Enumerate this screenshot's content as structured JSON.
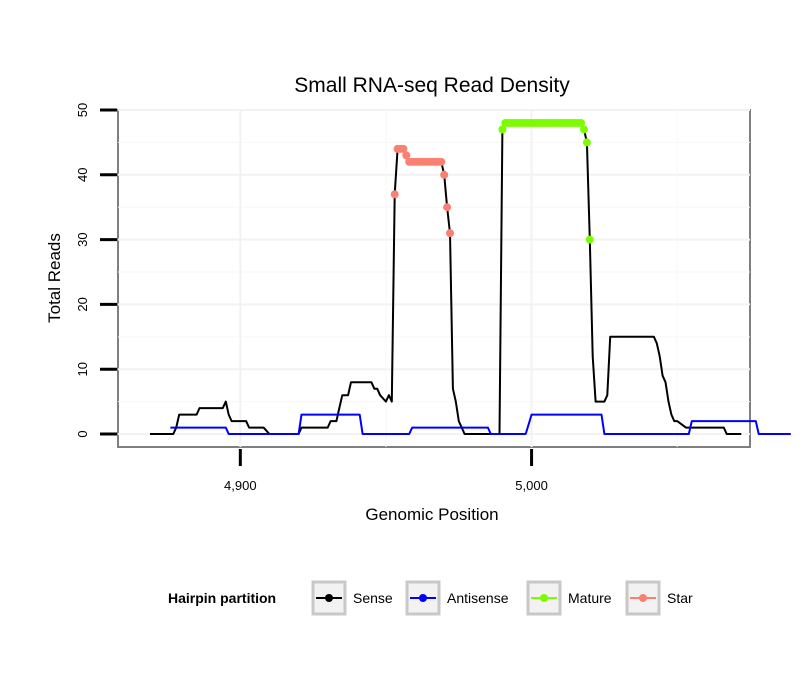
{
  "chart_data": {
    "type": "line",
    "title": "Small RNA-seq Read Density",
    "xlabel": "Genomic Position",
    "ylabel": "Total Reads",
    "xlim": [
      4858,
      5075
    ],
    "ylim": [
      -2,
      50
    ],
    "x_ticks": [
      4900,
      5000
    ],
    "x_tick_labels": [
      "4,900",
      "5,000"
    ],
    "y_ticks": [
      0,
      10,
      20,
      30,
      40,
      50
    ],
    "y_tick_labels": [
      "0",
      "10",
      "20",
      "30",
      "40",
      "50"
    ],
    "grid": true,
    "legend": {
      "title": "Hairpin partition",
      "position": "bottom",
      "entries": [
        {
          "label": "Sense",
          "color": "#000000"
        },
        {
          "label": "Antisense",
          "color": "#0000ff"
        },
        {
          "label": "Mature",
          "color": "#7cfc00"
        },
        {
          "label": "Star",
          "color": "#fa8072"
        }
      ]
    },
    "series": [
      {
        "name": "Sense",
        "color": "#000000",
        "points": [
          [
            4869,
            0
          ],
          [
            4877,
            0
          ],
          [
            4878,
            1
          ],
          [
            4879,
            3
          ],
          [
            4885,
            3
          ],
          [
            4886,
            4
          ],
          [
            4894,
            4
          ],
          [
            4895,
            5
          ],
          [
            4896,
            3
          ],
          [
            4897,
            2
          ],
          [
            4902,
            2
          ],
          [
            4903,
            1
          ],
          [
            4908,
            1
          ],
          [
            4910,
            0
          ],
          [
            4920,
            0
          ],
          [
            4921,
            1
          ],
          [
            4930,
            1
          ],
          [
            4931,
            2
          ],
          [
            4933,
            2
          ],
          [
            4934,
            4
          ],
          [
            4935,
            6
          ],
          [
            4937,
            6
          ],
          [
            4938,
            8
          ],
          [
            4945,
            8
          ],
          [
            4946,
            7
          ],
          [
            4947,
            7
          ],
          [
            4948,
            6
          ],
          [
            4950,
            5
          ],
          [
            4951,
            6
          ],
          [
            4952,
            5
          ],
          [
            4953,
            37
          ],
          [
            4954,
            44
          ],
          [
            4956,
            44
          ],
          [
            4957,
            43
          ],
          [
            4958,
            42
          ],
          [
            4969,
            42
          ],
          [
            4970,
            40
          ],
          [
            4971,
            35
          ],
          [
            4972,
            31
          ],
          [
            4973,
            7
          ],
          [
            4974,
            5
          ],
          [
            4975,
            2
          ],
          [
            4977,
            0
          ],
          [
            4989,
            0
          ],
          [
            4990,
            47
          ],
          [
            4991,
            48
          ],
          [
            5017,
            48
          ],
          [
            5018,
            47
          ],
          [
            5019,
            45
          ],
          [
            5020,
            30
          ],
          [
            5021,
            12
          ],
          [
            5022,
            5
          ],
          [
            5024,
            5
          ],
          [
            5025,
            5
          ],
          [
            5026,
            6
          ],
          [
            5027,
            15
          ],
          [
            5042,
            15
          ],
          [
            5043,
            14
          ],
          [
            5044,
            12
          ],
          [
            5045,
            9
          ],
          [
            5046,
            8
          ],
          [
            5047,
            5
          ],
          [
            5048,
            3
          ],
          [
            5049,
            2
          ],
          [
            5050,
            2
          ],
          [
            5053,
            1
          ],
          [
            5066,
            1
          ],
          [
            5067,
            0
          ],
          [
            5072,
            0
          ]
        ]
      },
      {
        "name": "Antisense",
        "color": "#0000ff",
        "points": [
          [
            4876,
            1
          ],
          [
            4895,
            1
          ],
          [
            4896,
            0
          ],
          [
            4920,
            0
          ],
          [
            4921,
            3
          ],
          [
            4941,
            3
          ],
          [
            4942,
            0
          ],
          [
            4958,
            0
          ],
          [
            4959,
            1
          ],
          [
            4985,
            1
          ],
          [
            4986,
            0
          ],
          [
            4998,
            0
          ],
          [
            5000,
            3
          ],
          [
            5024,
            3
          ],
          [
            5025,
            0
          ],
          [
            5054,
            0
          ],
          [
            5055,
            2
          ],
          [
            5077,
            2
          ],
          [
            5078,
            0
          ],
          [
            5089,
            0
          ]
        ]
      },
      {
        "name": "Mature",
        "color": "#7cfc00",
        "points": [
          [
            4990,
            47
          ],
          [
            4991,
            48
          ],
          [
            4992,
            48
          ],
          [
            4993,
            48
          ],
          [
            4994,
            48
          ],
          [
            4995,
            48
          ],
          [
            4996,
            48
          ],
          [
            4997,
            48
          ],
          [
            4998,
            48
          ],
          [
            4999,
            48
          ],
          [
            5000,
            48
          ],
          [
            5001,
            48
          ],
          [
            5002,
            48
          ],
          [
            5003,
            48
          ],
          [
            5004,
            48
          ],
          [
            5005,
            48
          ],
          [
            5006,
            48
          ],
          [
            5007,
            48
          ],
          [
            5008,
            48
          ],
          [
            5009,
            48
          ],
          [
            5010,
            48
          ],
          [
            5011,
            48
          ],
          [
            5012,
            48
          ],
          [
            5013,
            48
          ],
          [
            5014,
            48
          ],
          [
            5015,
            48
          ],
          [
            5016,
            48
          ],
          [
            5017,
            48
          ],
          [
            5018,
            47
          ],
          [
            5019,
            45
          ],
          [
            5020,
            30
          ]
        ]
      },
      {
        "name": "Star",
        "color": "#fa8072",
        "points": [
          [
            4953,
            37
          ],
          [
            4954,
            44
          ],
          [
            4955,
            44
          ],
          [
            4956,
            44
          ],
          [
            4957,
            43
          ],
          [
            4958,
            42
          ],
          [
            4959,
            42
          ],
          [
            4960,
            42
          ],
          [
            4961,
            42
          ],
          [
            4962,
            42
          ],
          [
            4963,
            42
          ],
          [
            4964,
            42
          ],
          [
            4965,
            42
          ],
          [
            4966,
            42
          ],
          [
            4967,
            42
          ],
          [
            4968,
            42
          ],
          [
            4969,
            42
          ],
          [
            4970,
            40
          ],
          [
            4971,
            35
          ],
          [
            4972,
            31
          ]
        ]
      }
    ]
  }
}
